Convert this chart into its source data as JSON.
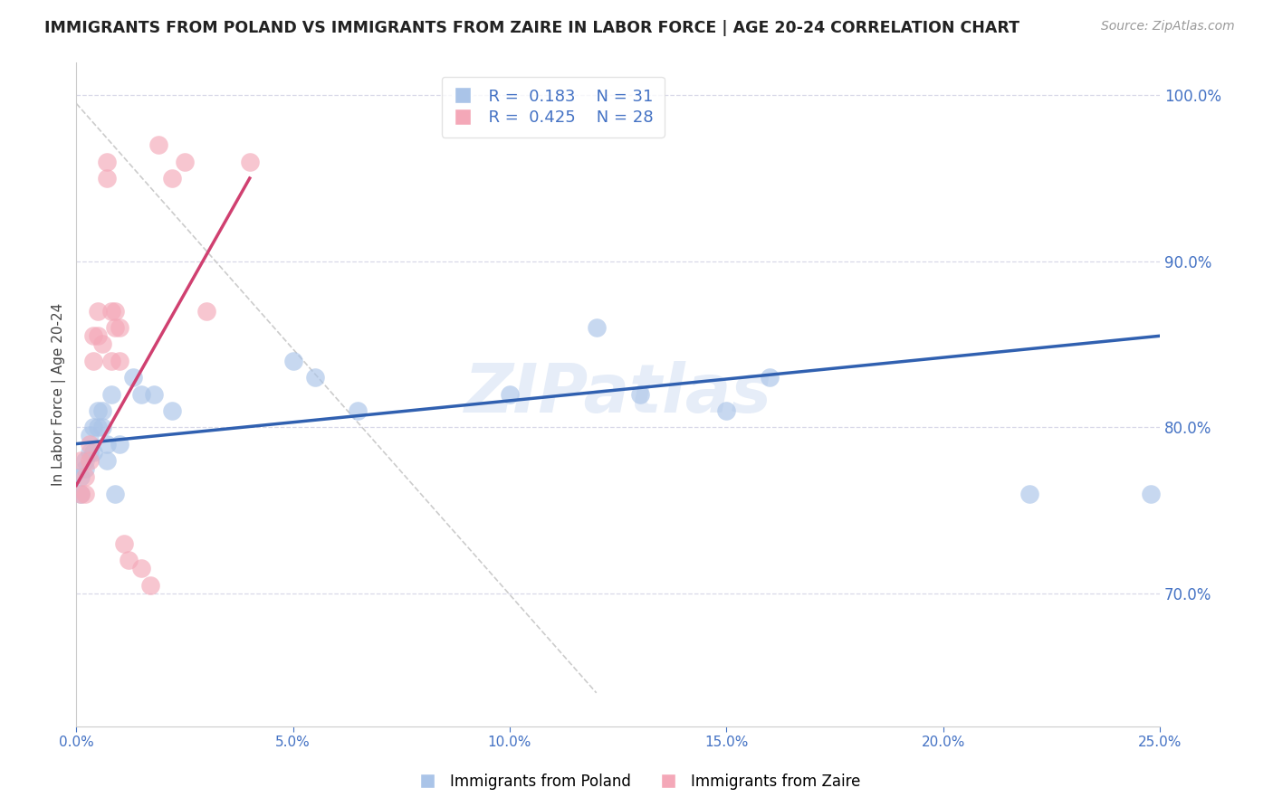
{
  "title": "IMMIGRANTS FROM POLAND VS IMMIGRANTS FROM ZAIRE IN LABOR FORCE | AGE 20-24 CORRELATION CHART",
  "source": "Source: ZipAtlas.com",
  "ylabel": "In Labor Force | Age 20-24",
  "xlim": [
    0.0,
    0.25
  ],
  "ylim": [
    0.62,
    1.02
  ],
  "yticks": [
    0.7,
    0.8,
    0.9,
    1.0
  ],
  "xticks": [
    0.0,
    0.05,
    0.1,
    0.15,
    0.2,
    0.25
  ],
  "poland_R": 0.183,
  "poland_N": 31,
  "zaire_R": 0.425,
  "zaire_N": 28,
  "poland_color": "#aac4e8",
  "zaire_color": "#f4a8b8",
  "poland_line_color": "#3060b0",
  "zaire_line_color": "#d04070",
  "watermark": "ZIPatlas",
  "poland_scatter_x": [
    0.001,
    0.001,
    0.002,
    0.002,
    0.003,
    0.003,
    0.004,
    0.004,
    0.005,
    0.005,
    0.006,
    0.006,
    0.007,
    0.007,
    0.008,
    0.009,
    0.01,
    0.013,
    0.015,
    0.018,
    0.022,
    0.05,
    0.055,
    0.065,
    0.1,
    0.12,
    0.13,
    0.15,
    0.16,
    0.22,
    0.248
  ],
  "poland_scatter_y": [
    0.77,
    0.76,
    0.78,
    0.775,
    0.785,
    0.795,
    0.8,
    0.785,
    0.8,
    0.81,
    0.8,
    0.81,
    0.79,
    0.78,
    0.82,
    0.76,
    0.79,
    0.83,
    0.82,
    0.82,
    0.81,
    0.84,
    0.83,
    0.81,
    0.82,
    0.86,
    0.82,
    0.81,
    0.83,
    0.76,
    0.76
  ],
  "zaire_scatter_x": [
    0.001,
    0.001,
    0.002,
    0.002,
    0.003,
    0.003,
    0.004,
    0.004,
    0.005,
    0.005,
    0.006,
    0.007,
    0.007,
    0.008,
    0.008,
    0.009,
    0.009,
    0.01,
    0.01,
    0.011,
    0.012,
    0.015,
    0.017,
    0.019,
    0.022,
    0.025,
    0.03,
    0.04
  ],
  "zaire_scatter_y": [
    0.76,
    0.78,
    0.76,
    0.77,
    0.78,
    0.79,
    0.84,
    0.855,
    0.855,
    0.87,
    0.85,
    0.96,
    0.95,
    0.87,
    0.84,
    0.86,
    0.87,
    0.84,
    0.86,
    0.73,
    0.72,
    0.715,
    0.705,
    0.97,
    0.95,
    0.96,
    0.87,
    0.96
  ],
  "poland_line_x0": 0.0,
  "poland_line_y0": 0.79,
  "poland_line_x1": 0.25,
  "poland_line_y1": 0.855,
  "zaire_line_x0": 0.0,
  "zaire_line_y0": 0.765,
  "zaire_line_x1": 0.04,
  "zaire_line_y1": 0.95,
  "ref_line_x0": 0.0,
  "ref_line_y0": 0.995,
  "ref_line_x1": 0.12,
  "ref_line_y1": 0.64
}
